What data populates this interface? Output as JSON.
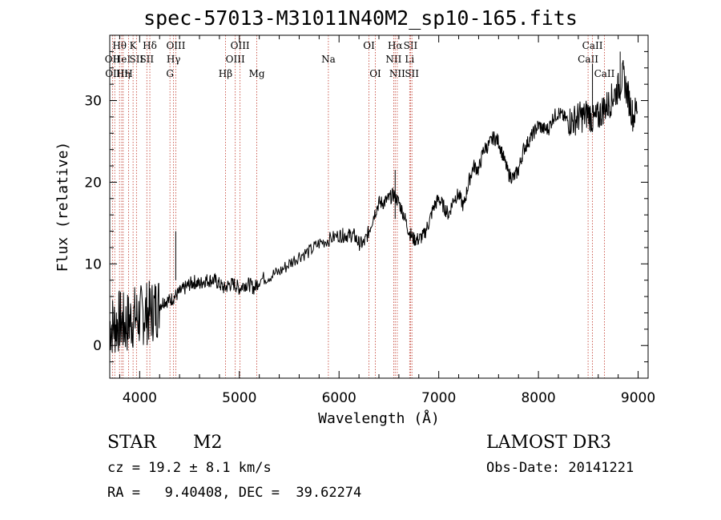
{
  "chart_data": {
    "type": "line",
    "title": "spec-57013-M31011N40M2_sp10-165.fits",
    "xlabel": "Wavelength (Å)",
    "ylabel": "Flux (relative)",
    "xlim": [
      3700,
      9100
    ],
    "ylim": [
      -4,
      38
    ],
    "xticks": [
      4000,
      5000,
      6000,
      7000,
      8000,
      9000
    ],
    "yticks": [
      0,
      10,
      20,
      30
    ],
    "series": [
      {
        "name": "spectrum",
        "x": [
          3700,
          3750,
          3800,
          3850,
          3900,
          3950,
          4000,
          4050,
          4100,
          4150,
          4200,
          4250,
          4300,
          4350,
          4400,
          4450,
          4500,
          4550,
          4600,
          4650,
          4700,
          4750,
          4800,
          4850,
          4900,
          4950,
          5000,
          5050,
          5100,
          5150,
          5200,
          5300,
          5400,
          5500,
          5600,
          5700,
          5800,
          5900,
          6000,
          6050,
          6100,
          6150,
          6200,
          6250,
          6300,
          6350,
          6400,
          6450,
          6500,
          6550,
          6600,
          6650,
          6700,
          6750,
          6800,
          6850,
          6900,
          6950,
          7000,
          7050,
          7100,
          7150,
          7200,
          7250,
          7300,
          7350,
          7400,
          7450,
          7500,
          7550,
          7600,
          7650,
          7700,
          7750,
          7800,
          7850,
          7900,
          7950,
          8000,
          8050,
          8100,
          8150,
          8200,
          8250,
          8300,
          8350,
          8400,
          8450,
          8500,
          8550,
          8600,
          8650,
          8700,
          8750,
          8800,
          8850,
          8900,
          8950,
          9000
        ],
        "values": [
          2.5,
          2.5,
          3.0,
          2.5,
          3.0,
          3.5,
          3.5,
          4.0,
          4.0,
          4.5,
          5.0,
          5.5,
          5.5,
          6.0,
          6.5,
          7.0,
          7.5,
          7.8,
          7.5,
          8.0,
          8.0,
          8.0,
          7.5,
          7.0,
          7.5,
          7.5,
          7.0,
          7.5,
          7.5,
          7.0,
          8.0,
          8.5,
          9.0,
          10.0,
          11.0,
          11.5,
          12.5,
          13.0,
          13.5,
          13.5,
          13.5,
          13.5,
          12.5,
          12.5,
          14.0,
          16.0,
          17.5,
          17.5,
          18.0,
          18.5,
          17.5,
          16.0,
          14.0,
          13.0,
          13.0,
          13.5,
          15.0,
          17.0,
          18.0,
          17.0,
          16.0,
          18.0,
          18.5,
          17.0,
          20.0,
          22.0,
          21.5,
          24.0,
          24.5,
          25.5,
          25.0,
          23.0,
          21.0,
          20.5,
          21.5,
          24.0,
          25.0,
          26.0,
          27.0,
          26.5,
          26.5,
          28.0,
          28.5,
          28.0,
          27.5,
          27.5,
          28.0,
          28.0,
          28.5,
          27.5,
          28.0,
          29.0,
          29.5,
          30.5,
          31.5,
          33.0,
          30.5,
          28.0,
          29.5
        ]
      }
    ],
    "spike_annotations": [
      {
        "x": 4362,
        "y": 14.0
      },
      {
        "x": 6563,
        "y": 21.5
      },
      {
        "x": 8542,
        "y": 34.5
      },
      {
        "x": 8820,
        "y": 36.0
      }
    ],
    "line_markers": [
      {
        "wave": 3727,
        "label": "OII",
        "row": 2
      },
      {
        "wave": 3750,
        "label": "OIII",
        "row": 3
      },
      {
        "wave": 3798,
        "label": "Hθ",
        "row": 1
      },
      {
        "wave": 3820,
        "label": "HeI",
        "row": 2
      },
      {
        "wave": 3835,
        "label": "Hη",
        "row": 3
      },
      {
        "wave": 3889,
        "label": "H",
        "row": 3
      },
      {
        "wave": 3934,
        "label": "K",
        "row": 1
      },
      {
        "wave": 3968,
        "label": "SII",
        "row": 2
      },
      {
        "wave": 4072,
        "label": "SII",
        "row": 2
      },
      {
        "wave": 4102,
        "label": "Hδ",
        "row": 1
      },
      {
        "wave": 4304,
        "label": "G",
        "row": 3
      },
      {
        "wave": 4340,
        "label": "Hγ",
        "row": 2
      },
      {
        "wave": 4363,
        "label": "OIII",
        "row": 1
      },
      {
        "wave": 4861,
        "label": "Hβ",
        "row": 3
      },
      {
        "wave": 4959,
        "label": "OIII",
        "row": 2
      },
      {
        "wave": 5007,
        "label": "OIII",
        "row": 1
      },
      {
        "wave": 5175,
        "label": "Mg",
        "row": 3
      },
      {
        "wave": 5893,
        "label": "Na",
        "row": 2
      },
      {
        "wave": 6300,
        "label": "OI",
        "row": 1
      },
      {
        "wave": 6364,
        "label": "OI",
        "row": 3
      },
      {
        "wave": 6548,
        "label": "NII",
        "row": 2
      },
      {
        "wave": 6563,
        "label": "Hα",
        "row": 1
      },
      {
        "wave": 6584,
        "label": "NII",
        "row": 3
      },
      {
        "wave": 6708,
        "label": "Li",
        "row": 2
      },
      {
        "wave": 6717,
        "label": "SII",
        "row": 1
      },
      {
        "wave": 6731,
        "label": "SII",
        "row": 3
      },
      {
        "wave": 8498,
        "label": "CaII",
        "row": 2
      },
      {
        "wave": 8542,
        "label": "CaII",
        "row": 1
      },
      {
        "wave": 8662,
        "label": "CaII",
        "row": 3
      }
    ]
  },
  "info": {
    "object_class": "STAR",
    "subclass": "M2",
    "survey": "LAMOST DR3",
    "redshift": "cz = 19.2 ± 8.1 km/s",
    "obs_date": "Obs-Date: 20141221",
    "coords": "RA =   9.40408, DEC =  39.62274"
  }
}
